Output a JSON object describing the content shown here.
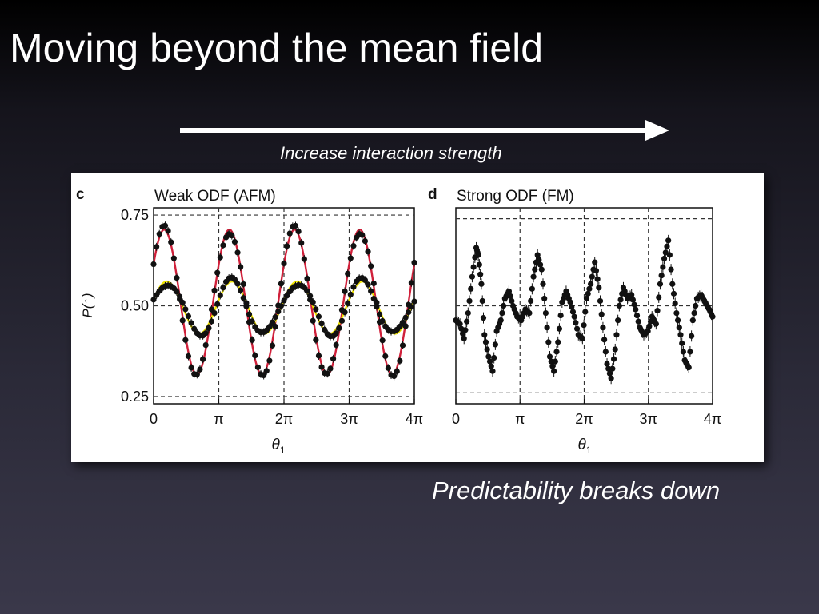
{
  "slide": {
    "title": "Moving beyond the mean field",
    "arrow_label": "Increase interaction strength",
    "caption": "Predictability breaks down"
  },
  "colors": {
    "fit_red": "#d0203a",
    "fit_yellow": "#f2e600",
    "data": "#111111"
  },
  "chart_data": [
    {
      "type": "scatter",
      "panel_letter": "c",
      "title": "Weak ODF (AFM)",
      "xlabel": "θ",
      "xlabel_sub": "1",
      "ylabel": "P(↑)",
      "xlim": [
        0,
        12.566
      ],
      "ylim": [
        0.23,
        0.77
      ],
      "x_ticks": [
        0,
        3.1416,
        6.2832,
        9.4248,
        12.566
      ],
      "x_tick_labels": [
        "0",
        "π",
        "2π",
        "3π",
        "4π"
      ],
      "y_ticks": [
        0.25,
        0.5,
        0.75
      ],
      "y_tick_labels": [
        "0.25",
        "0.50",
        "0.75"
      ],
      "grid": "dashed",
      "series": [
        {
          "role": "fit",
          "color": "#d0203a",
          "model": "sine",
          "offset": 0.51,
          "amplitude": 0.2,
          "period": 3.1416,
          "phase": 0.55
        },
        {
          "role": "fit",
          "color": "#f2e600",
          "model": "sine",
          "offset": 0.495,
          "amplitude": 0.072,
          "period": 3.1416,
          "phase": 0.3
        },
        {
          "role": "data",
          "color": "#111111",
          "model": "sine",
          "offset": 0.51,
          "amplitude": 0.2,
          "period": 3.1416,
          "phase": 0.55,
          "points": 90
        },
        {
          "role": "data",
          "color": "#111111",
          "model": "sine",
          "offset": 0.495,
          "amplitude": 0.072,
          "period": 3.1416,
          "phase": 0.3,
          "points": 90
        }
      ]
    },
    {
      "type": "scatter",
      "panel_letter": "d",
      "title": "Strong ODF (FM)",
      "xlabel": "θ",
      "xlabel_sub": "1",
      "xlim": [
        0,
        12.566
      ],
      "ylim": [
        0.23,
        0.77
      ],
      "x_ticks": [
        0,
        3.1416,
        6.2832,
        9.4248,
        12.566
      ],
      "x_tick_labels": [
        "0",
        "π",
        "2π",
        "3π",
        "4π"
      ],
      "y_ticks": [
        0.26,
        0.5,
        0.74
      ],
      "grid": "dashed",
      "series": [
        {
          "role": "data",
          "color": "#111111",
          "x": [
            0.0,
            0.2,
            0.4,
            0.6,
            0.8,
            1.0,
            1.1,
            1.25,
            1.4,
            1.6,
            1.8,
            2.0,
            2.2,
            2.4,
            2.6,
            2.8,
            3.0,
            3.2,
            3.4,
            3.6,
            3.8,
            4.0,
            4.2,
            4.4,
            4.6,
            4.8,
            5.0,
            5.2,
            5.4,
            5.6,
            5.8,
            6.0,
            6.2,
            6.4,
            6.6,
            6.8,
            7.0,
            7.2,
            7.4,
            7.6,
            7.8,
            8.0,
            8.2,
            8.4,
            8.6,
            8.8,
            9.0,
            9.2,
            9.4,
            9.6,
            9.8,
            10.0,
            10.2,
            10.4,
            10.6,
            10.8,
            11.0,
            11.2,
            11.4,
            11.6,
            11.8,
            12.0,
            12.2,
            12.4,
            12.566
          ],
          "y": [
            0.46,
            0.45,
            0.41,
            0.48,
            0.58,
            0.66,
            0.64,
            0.56,
            0.42,
            0.36,
            0.32,
            0.43,
            0.46,
            0.52,
            0.54,
            0.5,
            0.47,
            0.46,
            0.49,
            0.48,
            0.58,
            0.64,
            0.6,
            0.48,
            0.36,
            0.32,
            0.4,
            0.51,
            0.54,
            0.51,
            0.47,
            0.42,
            0.41,
            0.52,
            0.56,
            0.62,
            0.55,
            0.44,
            0.34,
            0.3,
            0.38,
            0.5,
            0.55,
            0.52,
            0.53,
            0.49,
            0.44,
            0.42,
            0.43,
            0.47,
            0.45,
            0.56,
            0.63,
            0.68,
            0.56,
            0.48,
            0.42,
            0.35,
            0.33,
            0.46,
            0.52,
            0.53,
            0.51,
            0.49,
            0.47
          ]
        }
      ]
    }
  ]
}
